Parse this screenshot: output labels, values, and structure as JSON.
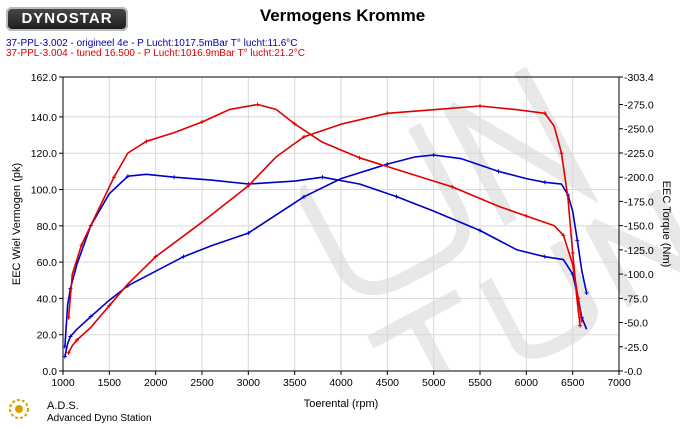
{
  "logo_text": "DYNOSTAR",
  "title": "Vermogens Kromme",
  "runs": [
    "37-PPL-3.002 - origineel 4e   - P Lucht:1017.5mBar T° lucht:11.6°C",
    "37-PPL-3.004 - tuned 16.500  - P Lucht:1016.9mBar T° lucht:21.2°C"
  ],
  "footer": {
    "name": "A.D.S.",
    "subtitle": "Advanced Dyno Station"
  },
  "colors": {
    "original": "#0000c8",
    "tuned": "#e00000",
    "grid": "#d8d8d8",
    "watermark": "#e6e6e6"
  },
  "chart_data": {
    "type": "line",
    "xlabel": "Toerental (rpm)",
    "ylabel": "EEC Wiel Vermogen (pk)",
    "y2label": "EEC Torque (Nm)",
    "xlim": [
      1000,
      7000
    ],
    "ylim": [
      0,
      162
    ],
    "y2lim": [
      0,
      303.4
    ],
    "x_ticks": [
      1000,
      1500,
      2000,
      2500,
      3000,
      3500,
      4000,
      4500,
      5000,
      5500,
      6000,
      6500,
      7000
    ],
    "y_ticks": [
      "0.0",
      "20.0",
      "40.0",
      "60.0",
      "80.0",
      "100.0",
      "120.0",
      "140.0",
      "162.0"
    ],
    "y2_ticks": [
      "0.0",
      "25.0",
      "50.0",
      "75.0",
      "100.0",
      "125.0",
      "150.0",
      "175.0",
      "200.0",
      "225.0",
      "250.0",
      "275.0",
      "303.4"
    ],
    "y_tick_values": [
      0,
      20,
      40,
      60,
      80,
      100,
      120,
      140,
      162
    ],
    "y2_tick_values": [
      0,
      25,
      50,
      75,
      100,
      125,
      150,
      175,
      200,
      225,
      250,
      275,
      303.4
    ],
    "grid": true,
    "series": [
      {
        "key": "power_original",
        "axis": "left",
        "color": "#0000c8",
        "points": [
          [
            1020,
            8
          ],
          [
            1050,
            15
          ],
          [
            1080,
            19
          ],
          [
            1150,
            23
          ],
          [
            1300,
            30
          ],
          [
            1500,
            39
          ],
          [
            1700,
            47
          ],
          [
            2000,
            55
          ],
          [
            2300,
            63
          ],
          [
            2600,
            69
          ],
          [
            3000,
            76
          ],
          [
            3300,
            86
          ],
          [
            3600,
            96
          ],
          [
            4000,
            106
          ],
          [
            4500,
            114
          ],
          [
            4800,
            118
          ],
          [
            5000,
            119
          ],
          [
            5300,
            117
          ],
          [
            5700,
            110
          ],
          [
            6000,
            106
          ],
          [
            6200,
            104
          ],
          [
            6380,
            103
          ],
          [
            6450,
            97
          ],
          [
            6500,
            88
          ],
          [
            6550,
            72
          ],
          [
            6600,
            55
          ],
          [
            6650,
            43
          ]
        ]
      },
      {
        "key": "torque_original",
        "axis": "right",
        "color": "#0000c8",
        "points": [
          [
            1020,
            25
          ],
          [
            1050,
            68
          ],
          [
            1080,
            85
          ],
          [
            1150,
            110
          ],
          [
            1300,
            150
          ],
          [
            1500,
            183
          ],
          [
            1700,
            201
          ],
          [
            1900,
            203
          ],
          [
            2200,
            200
          ],
          [
            2600,
            197
          ],
          [
            3000,
            193
          ],
          [
            3500,
            196
          ],
          [
            3800,
            200
          ],
          [
            4200,
            193
          ],
          [
            4600,
            180
          ],
          [
            5000,
            165
          ],
          [
            5500,
            145
          ],
          [
            5900,
            125
          ],
          [
            6200,
            118
          ],
          [
            6400,
            115
          ],
          [
            6500,
            100
          ],
          [
            6560,
            75
          ],
          [
            6600,
            55
          ],
          [
            6650,
            43
          ]
        ]
      },
      {
        "key": "power_tuned",
        "axis": "left",
        "color": "#e00000",
        "points": [
          [
            1060,
            10
          ],
          [
            1100,
            14
          ],
          [
            1150,
            17
          ],
          [
            1300,
            24
          ],
          [
            1500,
            36
          ],
          [
            1700,
            48
          ],
          [
            2000,
            63
          ],
          [
            2500,
            82
          ],
          [
            3000,
            102
          ],
          [
            3300,
            118
          ],
          [
            3600,
            129
          ],
          [
            4000,
            136
          ],
          [
            4500,
            142
          ],
          [
            5000,
            144
          ],
          [
            5500,
            146
          ],
          [
            5900,
            144
          ],
          [
            6200,
            142
          ],
          [
            6300,
            135
          ],
          [
            6380,
            120
          ],
          [
            6450,
            95
          ],
          [
            6500,
            65
          ],
          [
            6550,
            38
          ],
          [
            6580,
            25
          ]
        ]
      },
      {
        "key": "torque_tuned",
        "axis": "right",
        "color": "#e00000",
        "points": [
          [
            1060,
            55
          ],
          [
            1100,
            100
          ],
          [
            1200,
            130
          ],
          [
            1350,
            160
          ],
          [
            1550,
            200
          ],
          [
            1700,
            225
          ],
          [
            1900,
            237
          ],
          [
            2200,
            246
          ],
          [
            2500,
            257
          ],
          [
            2800,
            270
          ],
          [
            3100,
            275
          ],
          [
            3300,
            270
          ],
          [
            3500,
            255
          ],
          [
            3800,
            236
          ],
          [
            4200,
            220
          ],
          [
            4700,
            205
          ],
          [
            5200,
            190
          ],
          [
            5700,
            170
          ],
          [
            6000,
            160
          ],
          [
            6300,
            150
          ],
          [
            6400,
            140
          ],
          [
            6500,
            110
          ],
          [
            6560,
            75
          ],
          [
            6600,
            50
          ]
        ]
      }
    ]
  }
}
